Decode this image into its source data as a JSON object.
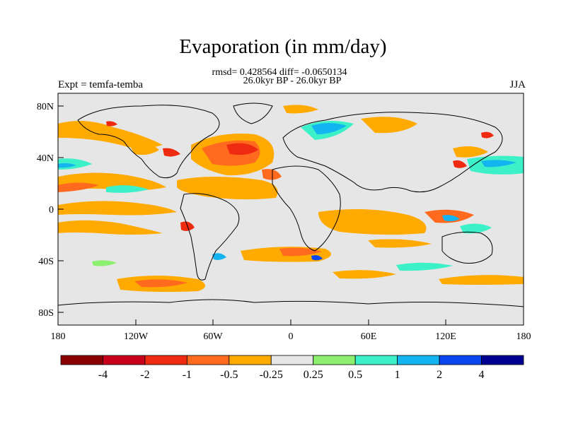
{
  "title": "Evaporation (in mm/day)",
  "stats": "rmsd= 0.428564  diff= -0.0650134",
  "period": "26.0kyr BP - 26.0kyr BP",
  "experiment": "Expt = temfa-temba",
  "season": "JJA",
  "lat_ticks": [
    "80N",
    "40N",
    "0",
    "40S",
    "80S"
  ],
  "lon_ticks": [
    "180",
    "120W",
    "60W",
    "0",
    "60E",
    "120E",
    "180"
  ],
  "colorbar": {
    "colors": [
      "#8b0000",
      "#c8001a",
      "#ee2a10",
      "#ff6a1e",
      "#ffaa00",
      "#e6e6e6",
      "#8cf06e",
      "#3cf0c8",
      "#14b4f0",
      "#0a46f0",
      "#000090"
    ],
    "labels": [
      "-4",
      "-2",
      "-1",
      "-0.5",
      "-0.25",
      "0.25",
      "0.5",
      "1",
      "2",
      "4"
    ]
  },
  "colors": {
    "background_field": "#e6e6e6",
    "coastline": "#000000"
  }
}
